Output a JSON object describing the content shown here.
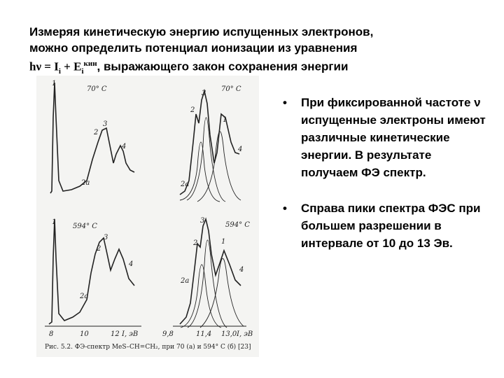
{
  "title": {
    "lines": [
      "Измеряя кинетическую энергию испущенных электронов,",
      "можно определить потенциал ионизации из уравнения"
    ],
    "formula": {
      "h": "hν = I",
      "sub1": "i",
      "mid": " + E",
      "sub2": "i",
      "sup": "кин",
      "tail": ", выражающего закон сохранения энергии"
    }
  },
  "bullets": [
    "При фиксированной частоте ν испущенные электроны имеют различные кинетические энергии. В результате получаем ФЭ спектр.",
    "Справа пики спектра ФЭС при большем разрешении в интервале от 10 до 13 Эв."
  ],
  "figure": {
    "panels": [
      {
        "temperature": "70° C",
        "peak_labels": [
          "1",
          "3",
          "2",
          "4",
          "2a"
        ]
      },
      {
        "temperature": "70° C",
        "peak_labels": [
          "3",
          "2",
          "1",
          "4",
          "2a"
        ]
      },
      {
        "temperature": "594° C",
        "peak_labels": [
          "1",
          "3",
          "2",
          "4",
          "2a"
        ]
      },
      {
        "temperature": "594° C",
        "peak_labels": [
          "3",
          "2",
          "1",
          "4",
          "2a"
        ]
      }
    ],
    "x_axes": [
      {
        "ticks": [
          "8",
          "10",
          "12"
        ],
        "unit": "I, эВ"
      },
      {
        "ticks": [
          "9,8",
          "11,4",
          "13,0"
        ],
        "unit": "I, эВ"
      }
    ],
    "caption": "Рис. 5.2. ФЭ-спектр MeS–CH=CH₂, при 70 (а) и 594° C (б) [23]"
  }
}
